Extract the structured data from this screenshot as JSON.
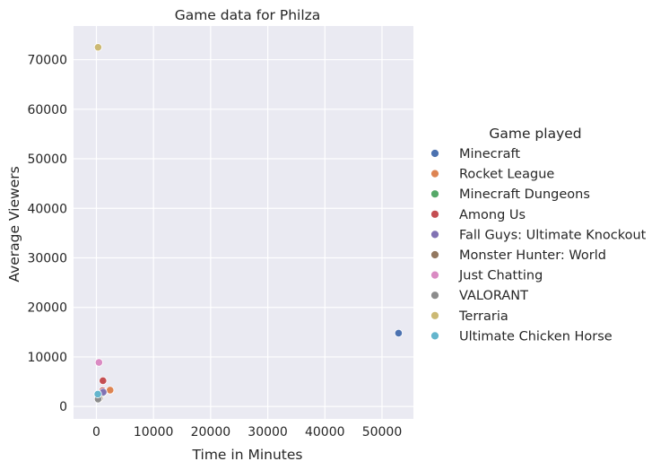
{
  "chart_data": {
    "type": "scatter",
    "title": "Game data for Philza",
    "xlabel": "Time in Minutes",
    "ylabel": "Average Viewers",
    "xlim": [
      -4000,
      55500
    ],
    "ylim": [
      -2500,
      76800
    ],
    "xticks": [
      0,
      10000,
      20000,
      30000,
      40000,
      50000
    ],
    "yticks": [
      0,
      10000,
      20000,
      30000,
      40000,
      50000,
      60000,
      70000
    ],
    "grid": true,
    "legend_title": "Game played",
    "legend_placement": "right",
    "series": [
      {
        "name": "Minecraft",
        "color": "#4c72b0",
        "points": [
          [
            52900,
            14800
          ]
        ]
      },
      {
        "name": "Rocket League",
        "color": "#dd8452",
        "points": [
          [
            2400,
            3300
          ]
        ]
      },
      {
        "name": "Minecraft Dungeons",
        "color": "#55a868",
        "points": [
          [
            1100,
            2700
          ]
        ]
      },
      {
        "name": "Among Us",
        "color": "#c44e52",
        "points": [
          [
            1150,
            5200
          ],
          [
            1100,
            3200
          ]
        ]
      },
      {
        "name": "Fall Guys: Ultimate Knockout",
        "color": "#8172b3",
        "points": [
          [
            1200,
            2900
          ]
        ]
      },
      {
        "name": "Monster Hunter: World",
        "color": "#937860",
        "points": [
          [
            500,
            1600
          ]
        ]
      },
      {
        "name": "Just Chatting",
        "color": "#da8bc3",
        "points": [
          [
            450,
            8900
          ]
        ]
      },
      {
        "name": "VALORANT",
        "color": "#8c8c8c",
        "points": [
          [
            300,
            1500
          ]
        ]
      },
      {
        "name": "Terraria",
        "color": "#ccb974",
        "points": [
          [
            300,
            72500
          ]
        ]
      },
      {
        "name": "Ultimate Chicken Horse",
        "color": "#64b5cd",
        "points": [
          [
            250,
            2500
          ]
        ]
      }
    ]
  }
}
